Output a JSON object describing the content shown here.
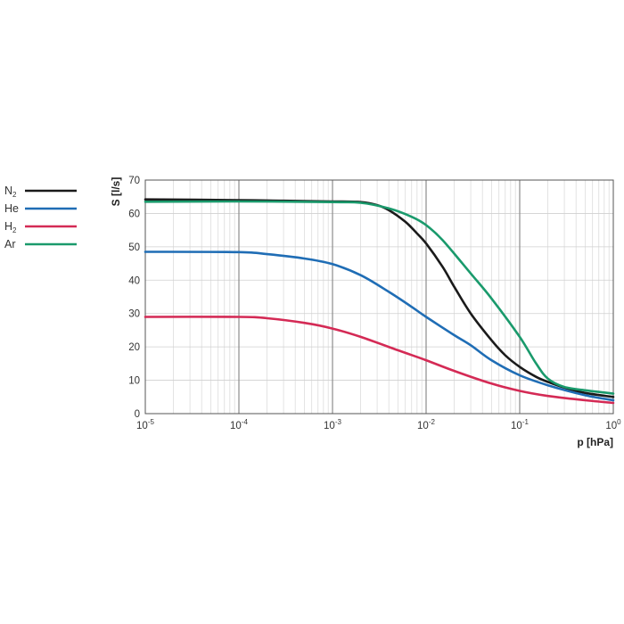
{
  "chart_data": {
    "type": "line",
    "xscale": "log",
    "xlabel": "p [hPa]",
    "ylabel": "S [l/s]",
    "xlim": [
      1e-05,
      1
    ],
    "ylim": [
      0,
      70
    ],
    "grid": true,
    "legend_position": "left",
    "xticks": [
      {
        "base": "10",
        "exp": "-5"
      },
      {
        "base": "10",
        "exp": "-4"
      },
      {
        "base": "10",
        "exp": "-3"
      },
      {
        "base": "10",
        "exp": "-2"
      },
      {
        "base": "10",
        "exp": "-1"
      },
      {
        "base": "10",
        "exp": "0"
      }
    ],
    "yticks": [
      "0",
      "10",
      "20",
      "30",
      "40",
      "50",
      "60",
      "70"
    ],
    "series": [
      {
        "name": "N2",
        "name_main": "N",
        "name_sub": "2",
        "color": "#1a1a1a",
        "points": [
          [
            1e-05,
            64.2
          ],
          [
            0.0001,
            64.0
          ],
          [
            0.0003,
            63.8
          ],
          [
            0.001,
            63.6
          ],
          [
            0.002,
            63.4
          ],
          [
            0.003,
            62.5
          ],
          [
            0.004,
            61.0
          ],
          [
            0.006,
            57.5
          ],
          [
            0.008,
            54.0
          ],
          [
            0.01,
            51.0
          ],
          [
            0.015,
            44.0
          ],
          [
            0.02,
            38.0
          ],
          [
            0.03,
            30.0
          ],
          [
            0.05,
            22.0
          ],
          [
            0.07,
            17.5
          ],
          [
            0.1,
            14.0
          ],
          [
            0.15,
            11.0
          ],
          [
            0.2,
            9.5
          ],
          [
            0.3,
            7.8
          ],
          [
            0.5,
            6.2
          ],
          [
            1,
            5.0
          ]
        ]
      },
      {
        "name": "He",
        "name_main": "He",
        "name_sub": "",
        "color": "#1f6db5",
        "points": [
          [
            1e-05,
            48.5
          ],
          [
            0.0001,
            48.4
          ],
          [
            0.0002,
            47.8
          ],
          [
            0.0005,
            46.5
          ],
          [
            0.001,
            44.8
          ],
          [
            0.002,
            41.5
          ],
          [
            0.004,
            36.5
          ],
          [
            0.007,
            32.0
          ],
          [
            0.01,
            29.0
          ],
          [
            0.02,
            23.5
          ],
          [
            0.03,
            20.5
          ],
          [
            0.05,
            16.0
          ],
          [
            0.1,
            11.5
          ],
          [
            0.2,
            8.5
          ],
          [
            0.5,
            5.5
          ],
          [
            1,
            4.0
          ]
        ]
      },
      {
        "name": "H2",
        "name_main": "H",
        "name_sub": "2",
        "color": "#d42a55",
        "points": [
          [
            1e-05,
            29.0
          ],
          [
            0.0001,
            29.0
          ],
          [
            0.0002,
            28.6
          ],
          [
            0.0005,
            27.2
          ],
          [
            0.001,
            25.5
          ],
          [
            0.002,
            23.0
          ],
          [
            0.005,
            19.0
          ],
          [
            0.01,
            16.0
          ],
          [
            0.02,
            12.8
          ],
          [
            0.05,
            9.0
          ],
          [
            0.1,
            6.8
          ],
          [
            0.2,
            5.3
          ],
          [
            0.5,
            4.0
          ],
          [
            1,
            3.2
          ]
        ]
      },
      {
        "name": "Ar",
        "name_main": "Ar",
        "name_sub": "",
        "color": "#1a9a6c",
        "points": [
          [
            1e-05,
            63.5
          ],
          [
            0.0001,
            63.6
          ],
          [
            0.001,
            63.4
          ],
          [
            0.002,
            63.2
          ],
          [
            0.004,
            61.5
          ],
          [
            0.007,
            59.0
          ],
          [
            0.01,
            56.5
          ],
          [
            0.015,
            52.0
          ],
          [
            0.03,
            42.0
          ],
          [
            0.05,
            34.5
          ],
          [
            0.1,
            23.0
          ],
          [
            0.15,
            15.0
          ],
          [
            0.2,
            10.5
          ],
          [
            0.3,
            8.0
          ],
          [
            0.5,
            7.0
          ],
          [
            1,
            6.0
          ]
        ]
      }
    ]
  }
}
